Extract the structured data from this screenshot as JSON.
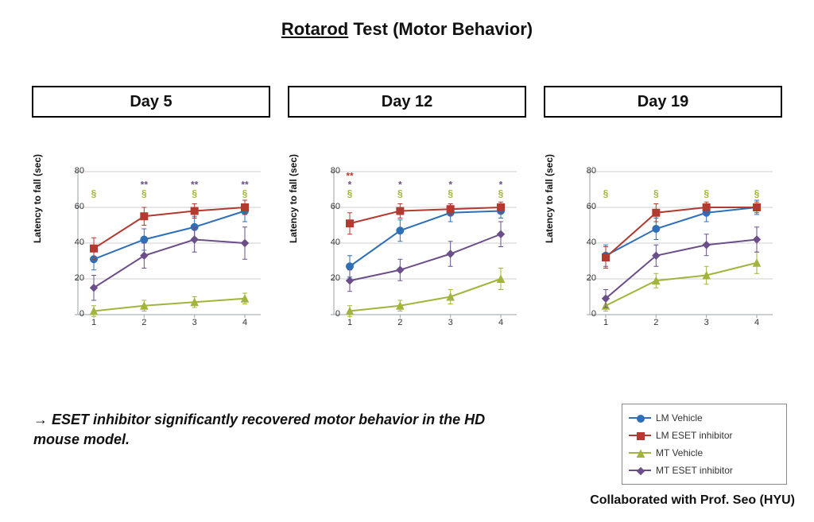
{
  "title": {
    "underlined": "Rotarod",
    "rest": " Test (Motor Behavior)"
  },
  "title_fontsize": 22,
  "axis": {
    "ylabel": "Latency  to  fall  (sec)",
    "ylim": [
      0,
      80
    ],
    "ytick_step": 20,
    "yticks": [
      0,
      20,
      40,
      60,
      80
    ],
    "xvalues": [
      1,
      2,
      3,
      4
    ],
    "xticks": [
      "1",
      "2",
      "3",
      "4"
    ],
    "axis_color": "#9aa0a6",
    "grid_color": "#cfcfcf",
    "tick_fontsize": 11,
    "label_fontsize": 12
  },
  "series_meta": {
    "LM_Vehicle": {
      "label": "LM Vehicle",
      "color": "#2f6fb7",
      "marker": "circle",
      "line_width": 2,
      "marker_size": 9
    },
    "LM_ESET_inhibitor": {
      "label": "LM ESET inhibitor",
      "color": "#b23a30",
      "marker": "square",
      "line_width": 2,
      "marker_size": 9
    },
    "MT_Vehicle": {
      "label": "MT Vehicle",
      "color": "#a3b43c",
      "marker": "triangle",
      "line_width": 2,
      "marker_size": 9
    },
    "MT_ESET_inhibitor": {
      "label": "MT ESET inhibitor",
      "color": "#6b4e8a",
      "marker": "diamond",
      "line_width": 2,
      "marker_size": 9
    }
  },
  "series_order": [
    "LM_Vehicle",
    "LM_ESET_inhibitor",
    "MT_Vehicle",
    "MT_ESET_inhibitor"
  ],
  "error_cap_width": 6,
  "error_color_alpha": 1,
  "annotation_fontsize": 12,
  "annotation_weight": "bold",
  "panels": [
    {
      "title": "Day  5",
      "series": {
        "LM_Vehicle": [
          31,
          42,
          49,
          58
        ],
        "LM_ESET_inhibitor": [
          37,
          55,
          58,
          60
        ],
        "MT_Vehicle": [
          2,
          5,
          7,
          9
        ],
        "MT_ESET_inhibitor": [
          15,
          33,
          42,
          40
        ]
      },
      "errors": {
        "LM_Vehicle": [
          6,
          6,
          6,
          6
        ],
        "LM_ESET_inhibitor": [
          6,
          5,
          4,
          4
        ],
        "MT_Vehicle": [
          3,
          3,
          3,
          3
        ],
        "MT_ESET_inhibitor": [
          7,
          7,
          7,
          9
        ]
      },
      "annotations_bottom_y": 66,
      "annotations": [
        {
          "x": 1,
          "stack": [
            {
              "text": "§",
              "color": "#a3b43c"
            }
          ]
        },
        {
          "x": 2,
          "stack": [
            {
              "text": "§",
              "color": "#a3b43c"
            },
            {
              "text": "**",
              "color": "#6b4e8a"
            }
          ]
        },
        {
          "x": 3,
          "stack": [
            {
              "text": "§",
              "color": "#a3b43c"
            },
            {
              "text": "**",
              "color": "#6b4e8a"
            }
          ]
        },
        {
          "x": 4,
          "stack": [
            {
              "text": "§",
              "color": "#a3b43c"
            },
            {
              "text": "**",
              "color": "#6b4e8a"
            }
          ]
        }
      ]
    },
    {
      "title": "Day  12",
      "series": {
        "LM_Vehicle": [
          27,
          47,
          57,
          58
        ],
        "LM_ESET_inhibitor": [
          51,
          58,
          59,
          60
        ],
        "MT_Vehicle": [
          2,
          5,
          10,
          20
        ],
        "MT_ESET_inhibitor": [
          19,
          25,
          34,
          45
        ]
      },
      "errors": {
        "LM_Vehicle": [
          6,
          6,
          5,
          4
        ],
        "LM_ESET_inhibitor": [
          6,
          4,
          3,
          3
        ],
        "MT_Vehicle": [
          3,
          3,
          4,
          6
        ],
        "MT_ESET_inhibitor": [
          6,
          6,
          7,
          7
        ]
      },
      "annotations_bottom_y": 66,
      "annotations": [
        {
          "x": 1,
          "stack": [
            {
              "text": "§",
              "color": "#a3b43c"
            },
            {
              "text": "*",
              "color": "#6b4e8a"
            },
            {
              "text": "**",
              "color": "#b23a30"
            }
          ]
        },
        {
          "x": 2,
          "stack": [
            {
              "text": "§",
              "color": "#a3b43c"
            },
            {
              "text": "*",
              "color": "#6b4e8a"
            }
          ]
        },
        {
          "x": 3,
          "stack": [
            {
              "text": "§",
              "color": "#a3b43c"
            },
            {
              "text": "*",
              "color": "#6b4e8a"
            }
          ]
        },
        {
          "x": 4,
          "stack": [
            {
              "text": "§",
              "color": "#a3b43c"
            },
            {
              "text": "*",
              "color": "#6b4e8a"
            }
          ]
        }
      ]
    },
    {
      "title": "Day  19",
      "series": {
        "LM_Vehicle": [
          33,
          48,
          57,
          60
        ],
        "LM_ESET_inhibitor": [
          32,
          57,
          60,
          60
        ],
        "MT_Vehicle": [
          5,
          19,
          22,
          29
        ],
        "MT_ESET_inhibitor": [
          9,
          33,
          39,
          42
        ]
      },
      "errors": {
        "LM_Vehicle": [
          6,
          6,
          5,
          4
        ],
        "LM_ESET_inhibitor": [
          6,
          5,
          3,
          3
        ],
        "MT_Vehicle": [
          3,
          4,
          5,
          6
        ],
        "MT_ESET_inhibitor": [
          5,
          6,
          6,
          7
        ]
      },
      "annotations_bottom_y": 66,
      "annotations": [
        {
          "x": 1,
          "stack": [
            {
              "text": "§",
              "color": "#a3b43c"
            }
          ]
        },
        {
          "x": 2,
          "stack": [
            {
              "text": "§",
              "color": "#a3b43c"
            }
          ]
        },
        {
          "x": 3,
          "stack": [
            {
              "text": "§",
              "color": "#a3b43c"
            }
          ]
        },
        {
          "x": 4,
          "stack": [
            {
              "text": "§",
              "color": "#a3b43c"
            }
          ]
        }
      ]
    }
  ],
  "legend_order": [
    "LM_Vehicle",
    "LM_ESET_inhibitor",
    "MT_Vehicle",
    "MT_ESET_inhibitor"
  ],
  "conclusion_arrow": "→",
  "conclusion_text": " ESET inhibitor significantly recovered motor behavior in the HD mouse model.",
  "footer_collab": "Collaborated with Prof. Seo (HYU)",
  "background_color": "#ffffff"
}
